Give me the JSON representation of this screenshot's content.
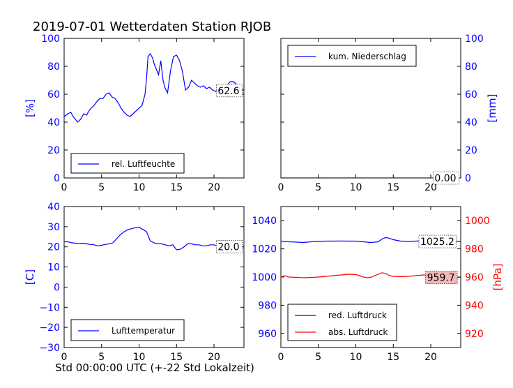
{
  "title": "2019-07-01 Wetterdaten Station RJOB",
  "xlabel": "Std 00:00:00 UTC (+-22 Std Lokalzeit)",
  "colors": {
    "blue": "#0000ff",
    "red": "#ff0000",
    "axis": "#000000"
  },
  "chart_data": [
    {
      "id": "humidity",
      "type": "line",
      "xlim": [
        0,
        24
      ],
      "xticks": [
        "0",
        "5",
        "10",
        "15",
        "20"
      ],
      "xtick_values": [
        0,
        5,
        10,
        15,
        20
      ],
      "ylim": [
        0,
        100
      ],
      "yticks": [
        "0",
        "20",
        "40",
        "60",
        "80",
        "100"
      ],
      "ytick_values": [
        0,
        20,
        40,
        60,
        80,
        100
      ],
      "ylabel": "[%]",
      "ylabel_color": "#0000ff",
      "current_value": "62.6",
      "legend": "rel. Luftfeuchte",
      "legend_placement": "lower-left",
      "series": [
        {
          "name": "rel. Luftfeuchte",
          "color": "#0000ff",
          "x": [
            0,
            0.5,
            0.9,
            1.2,
            1.5,
            1.8,
            2.2,
            2.6,
            3.0,
            3.3,
            3.6,
            4.0,
            4.4,
            4.8,
            5.2,
            5.6,
            6.0,
            6.4,
            6.8,
            7.2,
            7.6,
            8.0,
            8.4,
            8.8,
            9.2,
            9.6,
            10.0,
            10.4,
            10.8,
            11.0,
            11.2,
            11.5,
            11.8,
            12.0,
            12.3,
            12.6,
            12.9,
            13.2,
            13.5,
            13.8,
            14.2,
            14.6,
            15.0,
            15.4,
            15.8,
            16.2,
            16.6,
            17.0,
            17.4,
            17.8,
            18.2,
            18.6,
            19.0,
            19.4,
            19.8,
            20.2,
            20.6,
            21.0,
            21.4,
            21.8,
            22.2,
            22.6,
            23.0,
            23.4,
            24.0
          ],
          "y": [
            44,
            46,
            47,
            44,
            42,
            40,
            42,
            46,
            45,
            48,
            50,
            52,
            55,
            57,
            57,
            60,
            61,
            58,
            57,
            54,
            50,
            47,
            45,
            44,
            46,
            48,
            50,
            52,
            60,
            72,
            87,
            89,
            86,
            82,
            78,
            74,
            84,
            70,
            64,
            61,
            77,
            87,
            88,
            84,
            76,
            63,
            65,
            70,
            68,
            66,
            65,
            66,
            64,
            65,
            63,
            62,
            64,
            65,
            66,
            67,
            69,
            69,
            67,
            65,
            62.6
          ]
        }
      ]
    },
    {
      "id": "precipitation",
      "type": "line",
      "xlim": [
        0,
        24
      ],
      "xticks": [
        "0",
        "5",
        "10",
        "15",
        "20"
      ],
      "xtick_values": [
        0,
        5,
        10,
        15,
        20
      ],
      "ylim": [
        0,
        100
      ],
      "yticks": [
        "0",
        "20",
        "40",
        "60",
        "80",
        "100"
      ],
      "ytick_values": [
        0,
        20,
        40,
        60,
        80,
        100
      ],
      "ylabel": "[mm]",
      "ylabel_color": "#0000ff",
      "ylabel_side": "right",
      "current_value": "0.00",
      "legend": "kum. Niederschlag",
      "legend_placement": "upper-left",
      "series": [
        {
          "name": "kum. Niederschlag",
          "color": "#0000ff",
          "x": [
            0,
            24
          ],
          "y": [
            0,
            0
          ]
        }
      ]
    },
    {
      "id": "temperature",
      "type": "line",
      "xlim": [
        0,
        24
      ],
      "xticks": [
        "0",
        "5",
        "10",
        "15",
        "20"
      ],
      "xtick_values": [
        0,
        5,
        10,
        15,
        20
      ],
      "ylim": [
        -30,
        40
      ],
      "yticks": [
        "−30",
        "−20",
        "−10",
        "0",
        "10",
        "20",
        "30",
        "40"
      ],
      "ytick_values": [
        -30,
        -20,
        -10,
        0,
        10,
        20,
        30,
        40
      ],
      "ylabel": "[C]",
      "ylabel_color": "#0000ff",
      "current_value": "20.0",
      "legend": "Lufttemperatur",
      "legend_placement": "lower-left",
      "series": [
        {
          "name": "Lufttemperatur",
          "color": "#0000ff",
          "x": [
            0,
            0.5,
            1,
            1.5,
            2,
            2.5,
            3,
            3.5,
            4,
            4.5,
            5,
            5.5,
            6,
            6.5,
            7,
            7.5,
            8,
            8.5,
            9,
            9.5,
            10,
            10.3,
            10.6,
            11,
            11.5,
            12,
            12.5,
            13,
            13.5,
            14,
            14.5,
            15,
            15.5,
            16,
            16.5,
            17,
            17.5,
            18,
            18.5,
            19,
            19.5,
            20,
            20.5,
            21,
            21.5,
            22,
            22.5,
            23,
            23.5,
            24
          ],
          "y": [
            22.5,
            22.5,
            22,
            21.8,
            21.7,
            21.8,
            21.5,
            21.2,
            21,
            20.5,
            20.8,
            21.2,
            21.5,
            22,
            24,
            26,
            27.5,
            28.5,
            29,
            29.5,
            29.8,
            29,
            28.5,
            27.5,
            23,
            22,
            21.5,
            21.5,
            21,
            20.5,
            21,
            18.5,
            18.8,
            20,
            21.5,
            21.5,
            21,
            21,
            20.5,
            20.5,
            21,
            21,
            20.5,
            20.8,
            20.5,
            20.5,
            20.3,
            20.5,
            20,
            20
          ]
        }
      ]
    },
    {
      "id": "pressure",
      "type": "line",
      "xlim": [
        0,
        24
      ],
      "xticks": [
        "0",
        "5",
        "10",
        "15",
        "20"
      ],
      "xtick_values": [
        0,
        5,
        10,
        15,
        20
      ],
      "ylim": [
        950,
        1050
      ],
      "yticks": [
        "960",
        "980",
        "1000",
        "1020",
        "1040"
      ],
      "ytick_values": [
        960,
        980,
        1000,
        1020,
        1040
      ],
      "ylabel_left_color": "#0000ff",
      "ylim_right": [
        910,
        1010
      ],
      "yticks_right": [
        "920",
        "940",
        "960",
        "980",
        "1000"
      ],
      "ytick_values_right": [
        920,
        940,
        960,
        980,
        1000
      ],
      "ylabel_right": "[hPa]",
      "ylabel_right_color": "#ff0000",
      "current_value_blue": "1025.2",
      "current_value_red": "959.7",
      "legend_placement": "lower-left",
      "series": [
        {
          "name": "red. Luftdruck",
          "color": "#0000ff",
          "axis": "left",
          "x": [
            0,
            1,
            2,
            3,
            4,
            5,
            6,
            7,
            8,
            9,
            10,
            11,
            12,
            13,
            13.5,
            14,
            14.5,
            15,
            16,
            17,
            18,
            19,
            20,
            21,
            22,
            23,
            24
          ],
          "y": [
            1025.5,
            1025,
            1024.8,
            1024.5,
            1025,
            1025.3,
            1025.5,
            1025.5,
            1025.6,
            1025.5,
            1025.5,
            1025,
            1024.5,
            1025,
            1027,
            1028,
            1027.5,
            1026.5,
            1025.5,
            1025.3,
            1025.5,
            1025.8,
            1025.8,
            1025.5,
            1025.2,
            1025.3,
            1025.2
          ]
        },
        {
          "name": "abs. Luftdruck",
          "color": "#ff0000",
          "axis": "right",
          "x": [
            0,
            0.5,
            1,
            2,
            3,
            4,
            5,
            6,
            7,
            8,
            9,
            10,
            11,
            11.5,
            12,
            12.5,
            13,
            13.5,
            14,
            14.5,
            15,
            16,
            17,
            18,
            19,
            20,
            21,
            22,
            23,
            24
          ],
          "y": [
            960,
            961,
            960,
            959.8,
            959.5,
            959.7,
            960,
            960.5,
            961,
            961.5,
            962,
            961.8,
            960,
            959.5,
            959.8,
            961,
            962,
            963,
            962.5,
            961,
            960.5,
            960.3,
            960.5,
            961,
            961.5,
            961.2,
            960.5,
            960,
            959.8,
            959.7
          ]
        }
      ]
    }
  ]
}
